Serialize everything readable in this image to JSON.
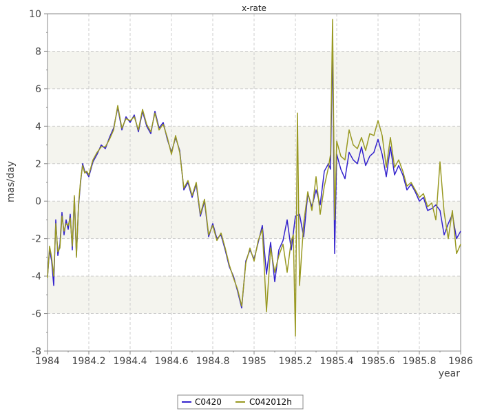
{
  "chart_data": {
    "type": "line",
    "title": "x-rate",
    "xlabel": "year",
    "ylabel": "mas/day",
    "xlim": [
      1984,
      1986
    ],
    "ylim": [
      -8,
      10
    ],
    "x_ticks": [
      1984,
      1984.2,
      1984.4,
      1984.6,
      1984.8,
      1985,
      1985.2,
      1985.4,
      1985.6,
      1985.8,
      1986
    ],
    "x_tick_labels": [
      "1984",
      "1984.2",
      "1984.4",
      "1984.6",
      "1984.8",
      "1985",
      "1985.2",
      "1985.4",
      "1985.6",
      "1985.8",
      "1986"
    ],
    "y_ticks": [
      -8,
      -6,
      -4,
      -2,
      0,
      2,
      4,
      6,
      8,
      10
    ],
    "y_tick_labels": [
      "-8",
      "-6",
      "-4",
      "-2",
      "0",
      "2",
      "4",
      "6",
      "8",
      "10"
    ],
    "grid": true,
    "legend_position": "bottom-center",
    "series": [
      {
        "name": "C0420",
        "color": "#3322cc",
        "x": [
          1984.0,
          1984.01,
          1984.02,
          1984.03,
          1984.04,
          1984.05,
          1984.06,
          1984.07,
          1984.08,
          1984.09,
          1984.1,
          1984.11,
          1984.12,
          1984.13,
          1984.14,
          1984.15,
          1984.16,
          1984.17,
          1984.18,
          1984.19,
          1984.2,
          1984.22,
          1984.24,
          1984.26,
          1984.28,
          1984.3,
          1984.32,
          1984.34,
          1984.36,
          1984.38,
          1984.4,
          1984.42,
          1984.44,
          1984.46,
          1984.48,
          1984.5,
          1984.52,
          1984.54,
          1984.56,
          1984.58,
          1984.6,
          1984.62,
          1984.64,
          1984.66,
          1984.68,
          1984.7,
          1984.72,
          1984.74,
          1984.76,
          1984.78,
          1984.8,
          1984.82,
          1984.84,
          1984.86,
          1984.88,
          1984.9,
          1984.92,
          1984.94,
          1984.96,
          1984.98,
          1985.0,
          1985.02,
          1985.04,
          1985.06,
          1985.08,
          1985.1,
          1985.12,
          1985.14,
          1985.16,
          1985.18,
          1985.2,
          1985.22,
          1985.24,
          1985.26,
          1985.28,
          1985.3,
          1985.32,
          1985.34,
          1985.36,
          1985.37,
          1985.38,
          1985.39,
          1985.4,
          1985.42,
          1985.44,
          1985.46,
          1985.48,
          1985.5,
          1985.52,
          1985.54,
          1985.56,
          1985.58,
          1985.6,
          1985.62,
          1985.64,
          1985.66,
          1985.68,
          1985.7,
          1985.72,
          1985.74,
          1985.76,
          1985.78,
          1985.8,
          1985.82,
          1985.84,
          1985.86,
          1985.88,
          1985.9,
          1985.92,
          1985.94,
          1985.96,
          1985.98,
          1986.0
        ],
        "y": [
          -4.0,
          -2.6,
          -3.2,
          -4.5,
          -1.0,
          -2.9,
          -2.3,
          -0.6,
          -1.8,
          -1.0,
          -1.5,
          -0.7,
          -2.6,
          0.2,
          -2.9,
          -0.3,
          1.0,
          2.0,
          1.6,
          1.5,
          1.3,
          2.1,
          2.5,
          3.0,
          2.8,
          3.4,
          3.9,
          5.0,
          3.8,
          4.5,
          4.2,
          4.6,
          3.7,
          4.8,
          4.0,
          3.6,
          4.8,
          3.9,
          4.2,
          3.3,
          2.6,
          3.4,
          2.7,
          0.6,
          1.0,
          0.2,
          0.9,
          -0.8,
          0.0,
          -1.9,
          -1.2,
          -2.0,
          -1.8,
          -2.6,
          -3.5,
          -4.0,
          -4.8,
          -5.7,
          -3.2,
          -2.6,
          -3.1,
          -2.2,
          -1.3,
          -3.9,
          -2.2,
          -4.3,
          -2.6,
          -2.1,
          -1.0,
          -2.6,
          -0.8,
          -0.7,
          -1.9,
          0.4,
          -0.3,
          0.6,
          -0.2,
          1.6,
          2.0,
          1.7,
          8.4,
          -2.8,
          2.5,
          1.7,
          1.2,
          2.6,
          2.2,
          2.0,
          2.9,
          1.9,
          2.4,
          2.6,
          3.3,
          2.5,
          1.3,
          2.9,
          1.4,
          1.9,
          1.4,
          0.6,
          0.9,
          0.5,
          0.0,
          0.2,
          -0.5,
          -0.4,
          -0.2,
          -0.5,
          -1.8,
          -1.2,
          -0.7,
          -2.0,
          -1.6
        ]
      },
      {
        "name": "C042012h",
        "color": "#999922",
        "x": [
          1984.0,
          1984.01,
          1984.02,
          1984.03,
          1984.04,
          1984.05,
          1984.06,
          1984.07,
          1984.08,
          1984.09,
          1984.1,
          1984.11,
          1984.12,
          1984.13,
          1984.14,
          1984.15,
          1984.16,
          1984.17,
          1984.18,
          1984.19,
          1984.2,
          1984.22,
          1984.24,
          1984.26,
          1984.28,
          1984.3,
          1984.32,
          1984.34,
          1984.36,
          1984.38,
          1984.4,
          1984.42,
          1984.44,
          1984.46,
          1984.48,
          1984.5,
          1984.52,
          1984.54,
          1984.56,
          1984.58,
          1984.6,
          1984.62,
          1984.64,
          1984.66,
          1984.68,
          1984.7,
          1984.72,
          1984.74,
          1984.76,
          1984.78,
          1984.8,
          1984.82,
          1984.84,
          1984.86,
          1984.88,
          1984.9,
          1984.92,
          1984.94,
          1984.96,
          1984.98,
          1985.0,
          1985.02,
          1985.04,
          1985.06,
          1985.08,
          1985.1,
          1985.12,
          1985.14,
          1985.16,
          1985.18,
          1985.19,
          1985.2,
          1985.21,
          1985.22,
          1985.24,
          1985.26,
          1985.28,
          1985.3,
          1985.32,
          1985.34,
          1985.36,
          1985.37,
          1985.38,
          1985.39,
          1985.4,
          1985.42,
          1985.44,
          1985.46,
          1985.48,
          1985.5,
          1985.52,
          1985.54,
          1985.56,
          1985.58,
          1985.6,
          1985.62,
          1985.64,
          1985.66,
          1985.68,
          1985.7,
          1985.72,
          1985.74,
          1985.76,
          1985.78,
          1985.8,
          1985.82,
          1985.84,
          1985.86,
          1985.88,
          1985.9,
          1985.92,
          1985.94,
          1985.96,
          1985.98,
          1986.0
        ],
        "y": [
          -4.1,
          -2.4,
          -3.0,
          -4.0,
          -1.2,
          -2.7,
          -2.5,
          -0.8,
          -1.6,
          -1.2,
          -1.3,
          -0.9,
          -2.4,
          0.3,
          -3.0,
          -0.2,
          1.1,
          1.9,
          1.5,
          1.6,
          1.4,
          2.2,
          2.6,
          2.9,
          2.9,
          3.3,
          3.8,
          5.1,
          3.9,
          4.4,
          4.3,
          4.5,
          3.8,
          4.9,
          4.1,
          3.7,
          4.7,
          3.8,
          4.1,
          3.4,
          2.5,
          3.5,
          2.6,
          0.7,
          1.1,
          0.3,
          1.0,
          -0.7,
          0.1,
          -1.8,
          -1.3,
          -2.1,
          -1.7,
          -2.5,
          -3.4,
          -4.1,
          -4.7,
          -5.6,
          -3.3,
          -2.5,
          -3.2,
          -2.1,
          -1.5,
          -5.9,
          -2.5,
          -3.8,
          -2.9,
          -2.3,
          -3.8,
          -2.1,
          -1.8,
          -7.2,
          4.7,
          -4.5,
          -1.2,
          0.5,
          -0.5,
          1.3,
          -0.7,
          0.8,
          1.8,
          2.5,
          9.7,
          -1.0,
          3.2,
          2.4,
          2.2,
          3.8,
          3.0,
          2.8,
          3.4,
          2.7,
          3.6,
          3.5,
          4.3,
          3.5,
          1.8,
          3.4,
          1.8,
          2.2,
          1.6,
          0.8,
          1.0,
          0.6,
          0.2,
          0.4,
          -0.3,
          -0.1,
          -1.0,
          2.1,
          -0.6,
          -2.0,
          -0.5,
          -2.8,
          -2.3
        ]
      }
    ]
  }
}
